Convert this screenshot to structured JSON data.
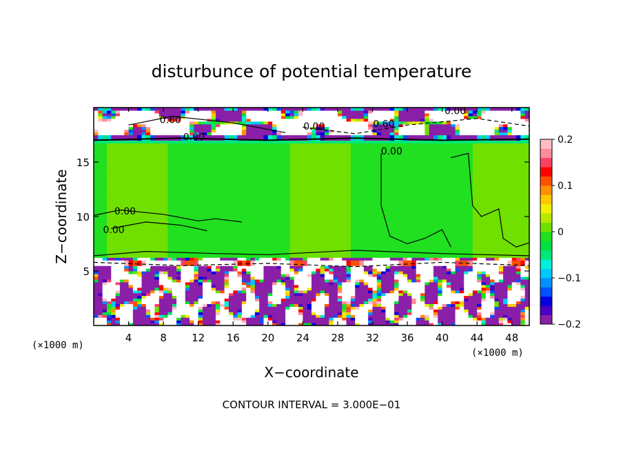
{
  "chart_data": {
    "type": "heatmap",
    "title": "disturbunce of potential temperature",
    "xlabel": "X−coordinate",
    "ylabel": "Z−coordinate",
    "x_unit": "(×1000 m)",
    "z_unit": "(×1000 m)",
    "xlim": [
      0,
      50
    ],
    "ylim": [
      0,
      20
    ],
    "x_ticks": [
      4,
      8,
      12,
      16,
      20,
      24,
      28,
      32,
      36,
      40,
      44,
      48
    ],
    "y_ticks": [
      5,
      10,
      15
    ],
    "colorbar": {
      "range": [
        -0.2,
        0.2
      ],
      "tick_values": [
        0.2,
        0.1,
        0,
        -0.1,
        -0.2
      ],
      "tick_labels": [
        "0.2",
        "0.1",
        "0",
        "−0.1",
        "−0.2"
      ],
      "colors": [
        "#8a1fa8",
        "#4b00c8",
        "#0000e0",
        "#0050ff",
        "#0090ff",
        "#00c8ff",
        "#00f0d8",
        "#00e878",
        "#00e040",
        "#20e020",
        "#70e000",
        "#b8e800",
        "#f0f000",
        "#ffc800",
        "#ff9000",
        "#ff5000",
        "#ff0000",
        "#ff4060",
        "#ff8c98",
        "#ffbcc4"
      ]
    },
    "contour_labels": [
      {
        "text": "0.60",
        "x": 8.8,
        "z": 18.9
      },
      {
        "text": "0.00",
        "x": 11.5,
        "z": 17.3
      },
      {
        "text": "0.00",
        "x": 25.3,
        "z": 18.3
      },
      {
        "text": "0.60",
        "x": 33.3,
        "z": 18.5
      },
      {
        "text": "0.00",
        "x": 41.5,
        "z": 19.7
      },
      {
        "text": "0.00",
        "x": 34.2,
        "z": 16.0
      },
      {
        "text": "0.00",
        "x": 3.6,
        "z": 10.5
      },
      {
        "text": "0.00",
        "x": 2.3,
        "z": 8.8
      }
    ],
    "footer": "CONTOUR INTERVAL = 3.000E−01"
  }
}
